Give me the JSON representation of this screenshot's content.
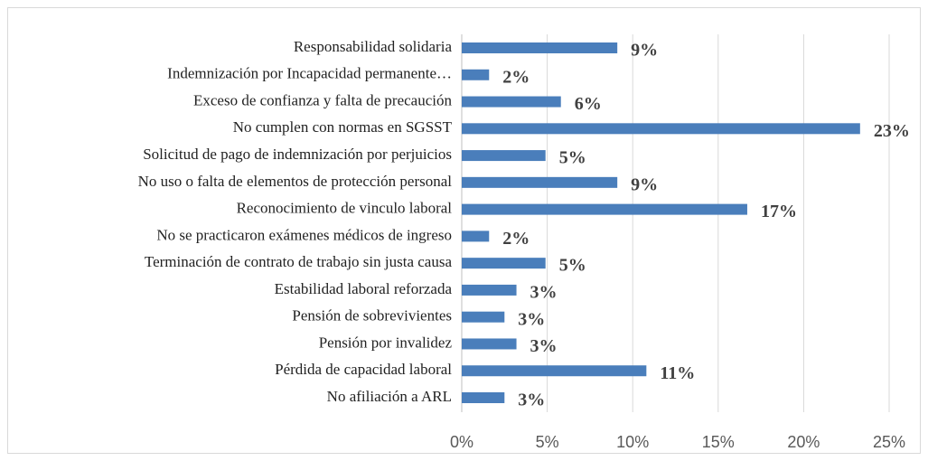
{
  "chart_data": {
    "type": "bar",
    "orientation": "horizontal",
    "categories": [
      "Responsabilidad solidaria",
      "Indemnización por Incapacidad permanente…",
      "Exceso de confianza y falta de precaución",
      "No cumplen con normas en SGSST",
      "Solicitud de pago de indemnización por perjuicios",
      "No uso o falta de elementos de protección personal",
      "Reconocimiento de vinculo laboral",
      "No se practicaron exámenes médicos de ingreso",
      "Terminación de contrato de trabajo sin justa causa",
      "Estabilidad laboral reforzada",
      "Pensión de sobrevivientes",
      "Pensión por invalidez",
      "Pérdida  de capacidad laboral",
      "No afiliación a ARL"
    ],
    "values": [
      9.1,
      1.6,
      5.8,
      23.3,
      4.9,
      9.1,
      16.7,
      1.6,
      4.9,
      3.2,
      2.5,
      3.2,
      10.8,
      2.5
    ],
    "value_labels": [
      "9%",
      "2%",
      "6%",
      "23%",
      "5%",
      "9%",
      "17%",
      "2%",
      "5%",
      "3%",
      "3%",
      "3%",
      "11%",
      "3%"
    ],
    "color": "#4a7ebb",
    "xlim": [
      0,
      25
    ],
    "xticks": [
      {
        "value": 0,
        "label": "0%"
      },
      {
        "value": 5,
        "label": "5%"
      },
      {
        "value": 10,
        "label": "10%"
      },
      {
        "value": 15,
        "label": "15%"
      },
      {
        "value": 20,
        "label": "20%"
      },
      {
        "value": 25,
        "label": "25%"
      }
    ],
    "grid": true
  }
}
